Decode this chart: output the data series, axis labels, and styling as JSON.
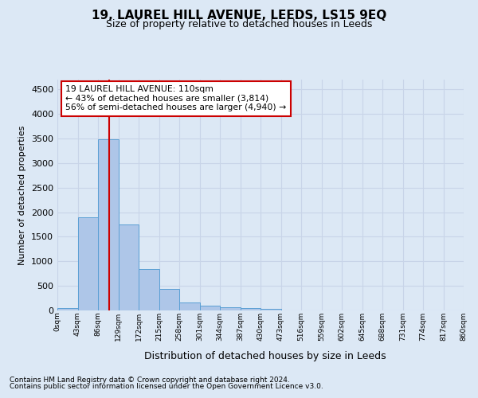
{
  "title": "19, LAUREL HILL AVENUE, LEEDS, LS15 9EQ",
  "subtitle": "Size of property relative to detached houses in Leeds",
  "xlabel": "Distribution of detached houses by size in Leeds",
  "ylabel": "Number of detached properties",
  "bar_values": [
    50,
    1900,
    3480,
    1750,
    840,
    445,
    170,
    100,
    60,
    55,
    40,
    0,
    0,
    0,
    0,
    0,
    0,
    0,
    0,
    0
  ],
  "bar_labels": [
    "0sqm",
    "43sqm",
    "86sqm",
    "129sqm",
    "172sqm",
    "215sqm",
    "258sqm",
    "301sqm",
    "344sqm",
    "387sqm",
    "430sqm",
    "473sqm",
    "516sqm",
    "559sqm",
    "602sqm",
    "645sqm",
    "688sqm",
    "731sqm",
    "774sqm",
    "817sqm",
    "860sqm"
  ],
  "bar_color": "#aec6e8",
  "bar_edge_color": "#5a9fd4",
  "vline_x": 2.56,
  "vline_color": "#cc0000",
  "annotation_text": "19 LAUREL HILL AVENUE: 110sqm\n← 43% of detached houses are smaller (3,814)\n56% of semi-detached houses are larger (4,940) →",
  "annotation_box_color": "#ffffff",
  "annotation_box_edge_color": "#cc0000",
  "ylim": [
    0,
    4700
  ],
  "yticks": [
    0,
    500,
    1000,
    1500,
    2000,
    2500,
    3000,
    3500,
    4000,
    4500
  ],
  "grid_color": "#c8d4e8",
  "background_color": "#dce8f5",
  "footer_line1": "Contains HM Land Registry data © Crown copyright and database right 2024.",
  "footer_line2": "Contains public sector information licensed under the Open Government Licence v3.0."
}
